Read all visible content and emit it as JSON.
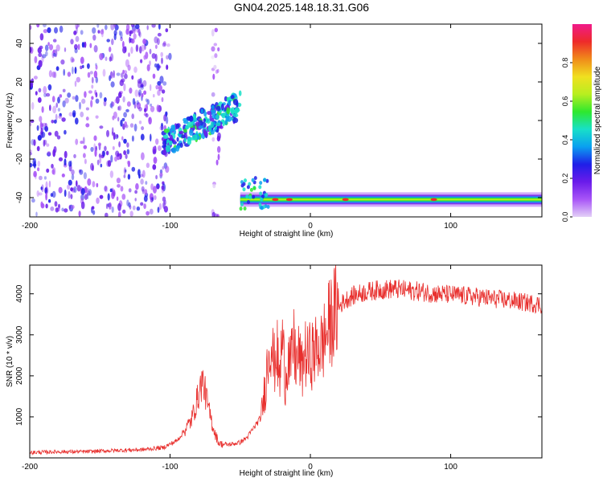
{
  "title": "GN04.2025.148.18.31.G06",
  "colors": {
    "snr_line": "#e8302e",
    "axis": "#000000",
    "colormap": [
      "#e3d0f7",
      "#a855f7",
      "#6a1bea",
      "#1f1fe8",
      "#0aa0f0",
      "#18e0c8",
      "#2ee82e",
      "#b8ee20",
      "#f0e020",
      "#f08c1a",
      "#ee2a2a",
      "#f01a8a"
    ]
  },
  "colorbar": {
    "label": "Normalized spectral amplitude",
    "ticks": [
      "0.0",
      "0.2",
      "0.4",
      "0.6",
      "0.8"
    ],
    "range": [
      0,
      1
    ]
  },
  "chart_data": [
    {
      "type": "heatmap",
      "title": "GN04.2025.148.18.31.G06",
      "xlabel": "Height of straight line (km)",
      "ylabel": "Frequency (Hz)",
      "xlim": [
        -200,
        165
      ],
      "ylim": [
        -50,
        50
      ],
      "xticks": [
        "-200",
        "-100",
        "0",
        "100"
      ],
      "yticks": [
        "40",
        "20",
        "0",
        "-20",
        "-40"
      ],
      "regions": [
        {
          "x_range": [
            -200,
            -100
          ],
          "y_range": [
            -50,
            50
          ],
          "amplitude": 0.15,
          "pattern": "scattered noise"
        },
        {
          "x_range": [
            -70,
            -65
          ],
          "y_range": [
            -50,
            50
          ],
          "amplitude": 0.08,
          "pattern": "scattered noise"
        },
        {
          "x_range": [
            -105,
            -50
          ],
          "y_center_start": -12,
          "y_center_end": 8,
          "amplitude": 0.3,
          "pattern": "rising streak"
        },
        {
          "x_range": [
            -50,
            165
          ],
          "y_center": -41,
          "amplitude": 0.5,
          "pattern": "stable tone",
          "peaks": [
            -25,
            -15,
            25,
            88
          ]
        }
      ]
    },
    {
      "type": "line",
      "xlabel": "Height of straight line (km)",
      "ylabel": "SNR (10 * v/v)",
      "xlim": [
        -200,
        165
      ],
      "ylim": [
        0,
        4700
      ],
      "xticks": [
        "-200",
        "-100",
        "0",
        "100"
      ],
      "yticks": [
        "1000",
        "2000",
        "3000",
        "4000"
      ],
      "series": [
        {
          "x": [
            -200,
            -180,
            -160,
            -140,
            -120,
            -105,
            -95,
            -85,
            -80,
            -77,
            -75,
            -72,
            -68,
            -65,
            -60,
            -55,
            -50,
            -45,
            -35,
            -32,
            -30,
            -28,
            -26,
            -24,
            -22,
            -20,
            -18,
            -16,
            -14,
            -12,
            -10,
            -8,
            -6,
            -4,
            -2,
            0,
            2,
            4,
            6,
            8,
            10,
            12,
            14,
            16,
            18,
            20,
            22,
            25,
            30,
            40,
            50,
            60,
            70,
            80,
            90,
            100,
            110,
            120,
            130,
            140,
            150,
            160,
            165
          ],
          "y": [
            130,
            150,
            150,
            180,
            200,
            250,
            420,
            900,
            1500,
            1900,
            1600,
            1100,
            600,
            350,
            320,
            340,
            380,
            500,
            1000,
            1800,
            2500,
            3000,
            2200,
            2700,
            1800,
            3000,
            1900,
            2500,
            2200,
            2800,
            2300,
            2500,
            2100,
            2600,
            2400,
            2500,
            2550,
            2600,
            2750,
            2700,
            2900,
            3100,
            3300,
            3450,
            3550,
            3650,
            3750,
            3850,
            3950,
            4050,
            4100,
            4120,
            4080,
            4050,
            4000,
            3980,
            3950,
            3920,
            3880,
            3850,
            3800,
            3760,
            3730
          ]
        }
      ]
    }
  ]
}
